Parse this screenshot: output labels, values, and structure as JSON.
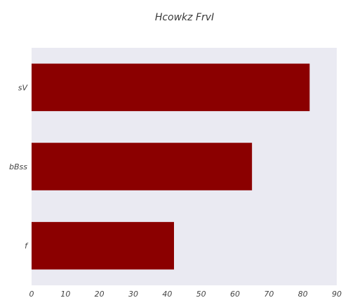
{
  "chart_data": {
    "type": "bar",
    "orientation": "horizontal",
    "title": "Hcowkz FrvI",
    "xlabel": "",
    "ylabel": "",
    "categories": [
      "sV",
      "bBss",
      "f"
    ],
    "values": [
      82,
      65,
      42
    ],
    "xlim": [
      0,
      90
    ],
    "x_ticks": [
      0,
      10,
      20,
      30,
      40,
      50,
      60,
      70,
      80,
      90
    ],
    "grid": false,
    "legend": "none",
    "colors": {
      "bar": "#8b0000",
      "plot_background": "#eaeaf2",
      "page_background": "#ffffff",
      "text": "#444444"
    }
  }
}
